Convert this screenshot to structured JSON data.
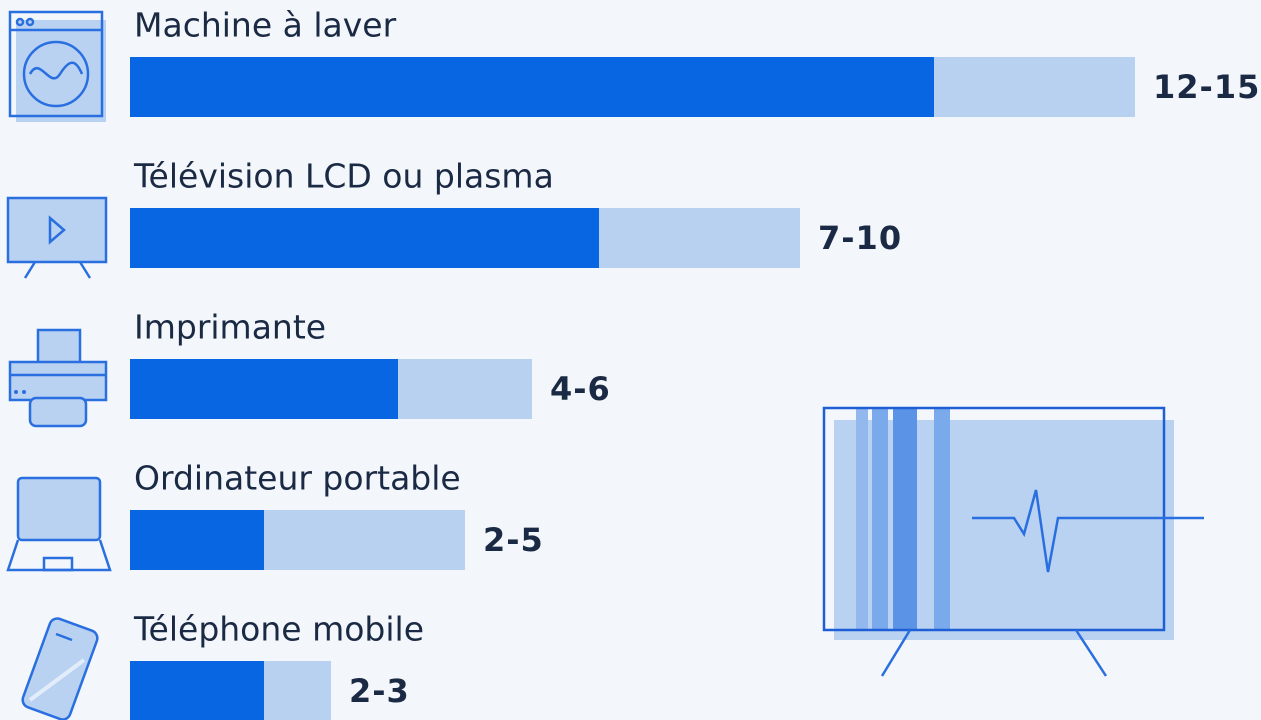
{
  "chart_data": {
    "type": "range_bar",
    "categories": [
      "Machine à laver",
      "Télévision LCD ou plasma",
      "Imprimante",
      "Ordinateur portable",
      "Téléphone mobile"
    ],
    "low": [
      12,
      7,
      4,
      2,
      2
    ],
    "high": [
      15,
      10,
      6,
      5,
      3
    ],
    "value_labels": [
      "12-15",
      "7-10",
      "4-6",
      "2-5",
      "2-3"
    ],
    "color": "#0866e3",
    "range_color": "#b8d1f0"
  }
}
